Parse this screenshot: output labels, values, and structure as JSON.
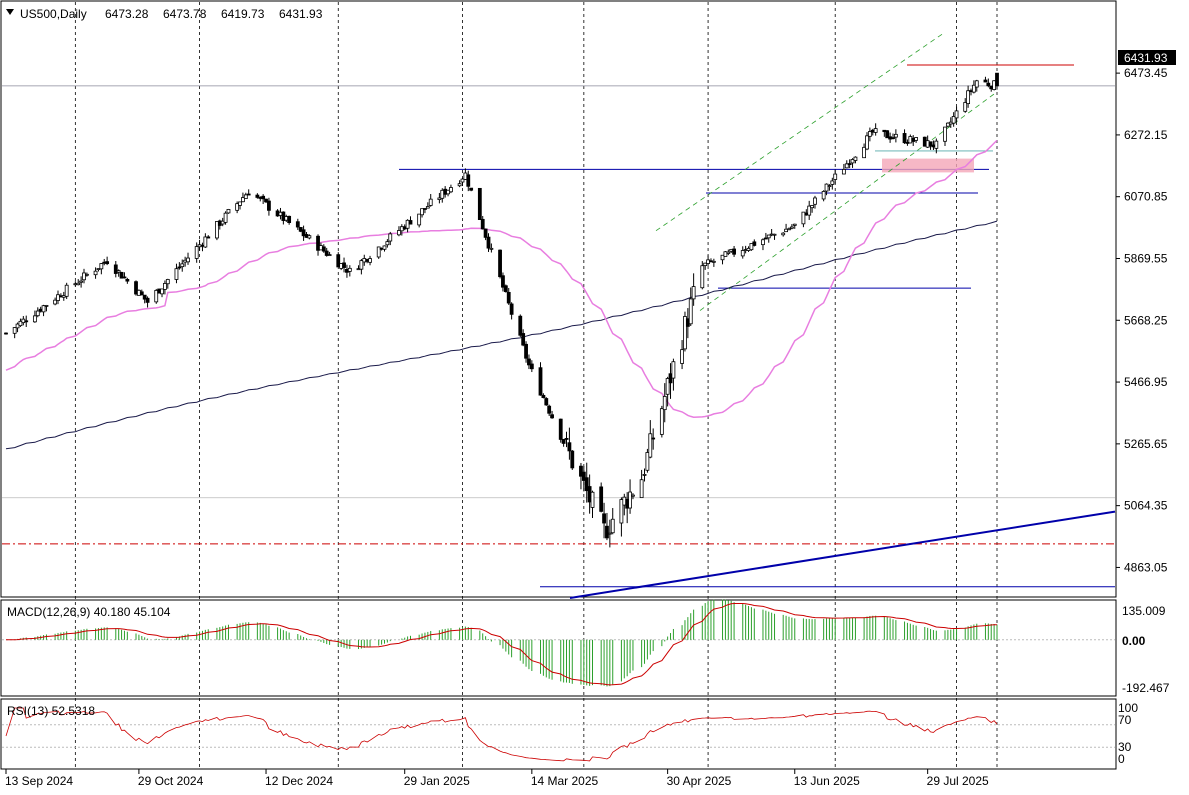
{
  "header": {
    "symbol": "US500,Daily",
    "open": "6473.28",
    "high": "6473.78",
    "low": "6419.73",
    "close": "6431.93"
  },
  "price_axis": {
    "labels": [
      "6473.45",
      "6272.15",
      "6070.85",
      "5869.55",
      "5668.25",
      "5466.95",
      "5265.65",
      "5064.35",
      "4863.05"
    ],
    "current_price": "6431.93"
  },
  "macd_panel": {
    "title": "MACD(12,26,9) 40.180 45.104",
    "axis_labels": [
      "135.009",
      "0.00",
      "-192.467"
    ]
  },
  "rsi_panel": {
    "title": "RSI(13) 52.5318",
    "axis_labels": [
      "100",
      "70",
      "30",
      "0"
    ]
  },
  "date_axis": {
    "labels": [
      "13 Sep 2024",
      "29 Oct 2024",
      "12 Dec 2024",
      "29 Jan 2025",
      "14 Mar 2025",
      "30 Apr 2025",
      "13 Jun 2025",
      "29 Jul 2025"
    ]
  },
  "colors": {
    "up_candle": "#ffffff",
    "down_candle": "#000000",
    "ma_fast": "#e87ee0",
    "ma_slow": "#1a1a4a",
    "support_lines": "#0000aa",
    "resistance_line": "#cc0000",
    "macd_histogram": "#2ca02c",
    "macd_signal": "#cc0000",
    "rsi_line": "#cc0000",
    "channel": "#2ca02c",
    "zone": "#f4a6b8"
  },
  "chart_data": {
    "type": "candlestick",
    "symbol": "US500",
    "timeframe": "Daily",
    "x_start": "2024-09-13",
    "x_end": "2025-08-22",
    "ylim": [
      4770,
      6640
    ],
    "key_closes": [
      {
        "date": "2024-09-13",
        "close": 5626
      },
      {
        "date": "2024-10-18",
        "close": 5864
      },
      {
        "date": "2024-11-01",
        "close": 5728
      },
      {
        "date": "2024-12-06",
        "close": 6090
      },
      {
        "date": "2025-01-10",
        "close": 5827
      },
      {
        "date": "2025-02-19",
        "close": 6144
      },
      {
        "date": "2025-03-13",
        "close": 5521
      },
      {
        "date": "2025-04-08",
        "close": 4982
      },
      {
        "date": "2025-04-21",
        "close": 5158
      },
      {
        "date": "2025-05-12",
        "close": 5844
      },
      {
        "date": "2025-06-13",
        "close": 5977
      },
      {
        "date": "2025-07-10",
        "close": 6280
      },
      {
        "date": "2025-08-01",
        "close": 6238
      },
      {
        "date": "2025-08-15",
        "close": 6449
      },
      {
        "date": "2025-08-22",
        "close": 6431.93
      }
    ],
    "levels": {
      "resistance_red": 6500,
      "horizontal_blue_1": 6160,
      "horizontal_blue_2": 6083,
      "horizontal_blue_3": 5773,
      "horizontal_blue_4": 4800,
      "dashed_red": 4940
    },
    "indicators": {
      "macd": {
        "params": "12,26,9",
        "main": 40.18,
        "signal": 45.104,
        "ylim": [
          -192.467,
          135.009
        ]
      },
      "rsi": {
        "period": 13,
        "value": 52.5318,
        "levels": [
          30,
          70
        ],
        "ylim": [
          0,
          100
        ]
      }
    }
  }
}
